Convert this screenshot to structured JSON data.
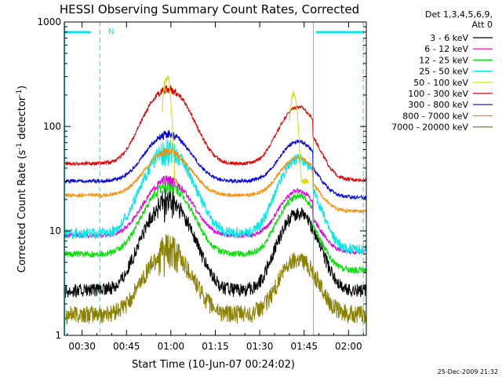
{
  "chart_data": {
    "type": "line",
    "title": "HESSI Observing Summary Count Rates, Corrected",
    "xlabel": "Start Time (10-Jun-07 00:24:02)",
    "ylabel_main": "Corrected Count Rate (s",
    "ylabel_sup1": "-1",
    "ylabel_mid": " detector",
    "ylabel_sup2": "-1",
    "ylabel_end": ")",
    "yscale": "log",
    "ylim": [
      1,
      1000
    ],
    "xlim_minutes": [
      24,
      126
    ],
    "x_ticks": [
      {
        "minute": 30,
        "label": "00:30"
      },
      {
        "minute": 45,
        "label": "00:45"
      },
      {
        "minute": 60,
        "label": "01:00"
      },
      {
        "minute": 75,
        "label": "01:15"
      },
      {
        "minute": 90,
        "label": "01:30"
      },
      {
        "minute": 105,
        "label": "01:45"
      },
      {
        "minute": 120,
        "label": "02:00"
      }
    ],
    "y_ticks": [
      {
        "value": 1,
        "label": "1"
      },
      {
        "value": 10,
        "label": "10"
      },
      {
        "value": 100,
        "label": "100"
      },
      {
        "value": 1000,
        "label": "1000"
      }
    ],
    "legend_header": [
      "Det 1,3,4,5,6,9,",
      "Att 0"
    ],
    "legend_position": "right",
    "flag_label": "N",
    "timestamp": "25-Dec-2009 21:32",
    "series": [
      {
        "name": "3 - 6 keV",
        "color": "#000000",
        "base": 2.7,
        "f1_mult": 7,
        "f2_mult": 5.5,
        "noise": 0.15
      },
      {
        "name": "6 - 12 keV",
        "color": "#e000e0",
        "base": 9,
        "f1_mult": 3.4,
        "f2_mult": 2.7,
        "noise": 0.05
      },
      {
        "name": "12 - 25 keV",
        "color": "#00e000",
        "base": 6,
        "f1_mult": 4.5,
        "f2_mult": 3.6,
        "noise": 0.07
      },
      {
        "name": "25 - 50 keV",
        "color": "#00e8e8",
        "base": 9.5,
        "f1_mult": 6.2,
        "f2_mult": 5.2,
        "noise": 0.12
      },
      {
        "name": "50 - 100 keV",
        "color": "#d8d800",
        "base": 0,
        "f1_mult": 0,
        "f2_mult": 0,
        "noise": 0.06
      },
      {
        "name": "100 - 300 keV",
        "color": "#e00000",
        "base": 44,
        "f1_mult": 5.2,
        "f2_mult": 3.5,
        "noise": 0.04
      },
      {
        "name": "300 - 800 keV",
        "color": "#0000e0",
        "base": 30,
        "f1_mult": 2.8,
        "f2_mult": 2.4,
        "noise": 0.04
      },
      {
        "name": "800 - 7000 keV",
        "color": "#ff8c00",
        "base": 22,
        "f1_mult": 2.6,
        "f2_mult": 2.3,
        "noise": 0.04
      },
      {
        "name": "7000 - 20000 keV",
        "color": "#8b8000",
        "base": 1.6,
        "f1_mult": 4,
        "f2_mult": 3.4,
        "noise": 0.2
      }
    ],
    "flare1_peak_minute": 59,
    "flare2_peak_minute": 103,
    "attenuator_bar_minutes": [
      [
        24,
        33
      ],
      [
        109,
        125
      ]
    ],
    "cyan_solid_minutes": [
      24,
      108
    ],
    "cyan_dashed_minutes": [
      36,
      125
    ]
  }
}
